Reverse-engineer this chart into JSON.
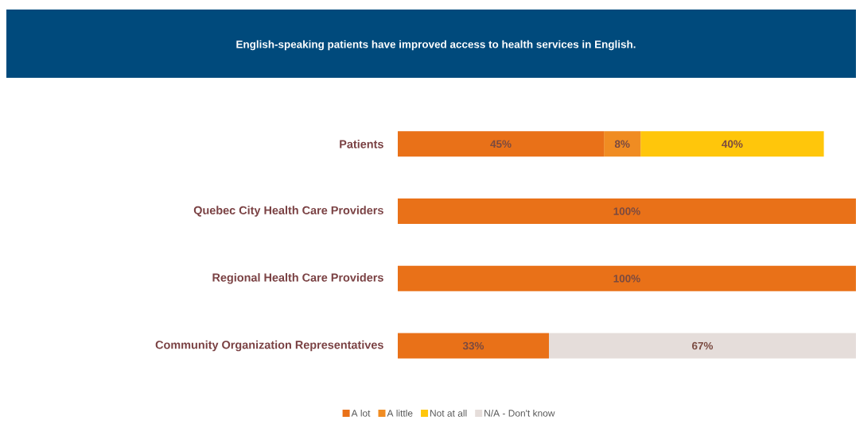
{
  "chart_data": {
    "type": "bar",
    "orientation": "horizontal",
    "stacked": true,
    "title": "English-speaking patients have improved access to health services in English.",
    "categories": [
      "Patients",
      "Quebec City Health Care Providers",
      "Regional Health Care Providers",
      "Community Organization Representatives"
    ],
    "series": [
      {
        "name": "A lot",
        "color": "#e97118",
        "values": [
          45,
          100,
          100,
          33
        ],
        "value_labels": [
          "45%",
          "100%",
          "100%",
          "33%"
        ]
      },
      {
        "name": "A little",
        "color": "#f08c22",
        "values": [
          8,
          null,
          null,
          null
        ],
        "value_labels": [
          "8%",
          null,
          null,
          null
        ]
      },
      {
        "name": "Not at all",
        "color": "#ffc60b",
        "values": [
          40,
          null,
          null,
          null
        ],
        "value_labels": [
          "40%",
          null,
          null,
          null
        ]
      },
      {
        "name": "N/A - Don't know",
        "color": "#e5ddda",
        "values": [
          null,
          null,
          null,
          67
        ],
        "value_labels": [
          null,
          null,
          null,
          "67%"
        ]
      }
    ],
    "legend": "bottom"
  }
}
